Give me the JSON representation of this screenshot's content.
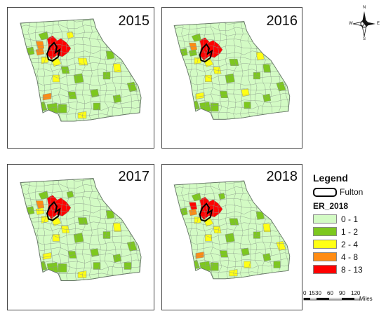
{
  "panels": [
    {
      "year": "2015",
      "colored": [
        [
          "a1",
          "red"
        ],
        [
          "a2",
          "red"
        ],
        [
          "a3",
          "orange"
        ],
        [
          "a4",
          "yellow"
        ],
        [
          "a5",
          "orange"
        ],
        [
          "a6",
          "green"
        ],
        [
          "a7",
          "green"
        ],
        [
          "a8",
          "yellow"
        ],
        [
          "a9",
          "yellow"
        ],
        [
          "b1",
          "green"
        ],
        [
          "b2",
          "yellow"
        ],
        [
          "b3",
          "yellow"
        ],
        [
          "b4",
          "green"
        ],
        [
          "c1",
          "yellow"
        ],
        [
          "c2",
          "green"
        ],
        [
          "c3",
          "green"
        ],
        [
          "c4",
          "green"
        ],
        [
          "c5",
          "green"
        ],
        [
          "d1",
          "orange"
        ],
        [
          "d2",
          "green"
        ],
        [
          "d3",
          "green"
        ],
        [
          "d4",
          "green"
        ],
        [
          "d5",
          "green"
        ],
        [
          "d6",
          "green"
        ],
        [
          "d7",
          "yellow"
        ],
        [
          "e1",
          "green"
        ],
        [
          "e2",
          "green"
        ]
      ]
    },
    {
      "year": "2016",
      "colored": [
        [
          "a1",
          "red"
        ],
        [
          "a2",
          "red"
        ],
        [
          "a3",
          "orange"
        ],
        [
          "a4",
          "yellow"
        ],
        [
          "a5",
          "green"
        ],
        [
          "a6",
          "green"
        ],
        [
          "a7",
          "green"
        ],
        [
          "a8",
          "yellow"
        ],
        [
          "b1",
          "yellow"
        ],
        [
          "b2",
          "green"
        ],
        [
          "b3",
          "green"
        ],
        [
          "b4",
          "yellow"
        ],
        [
          "c1",
          "yellow"
        ],
        [
          "c2",
          "green"
        ],
        [
          "c3",
          "green"
        ],
        [
          "c4",
          "green"
        ],
        [
          "c5",
          "yellow"
        ],
        [
          "d1",
          "yellow"
        ],
        [
          "d2",
          "green"
        ],
        [
          "d3",
          "green"
        ],
        [
          "d4",
          "green"
        ],
        [
          "d5",
          "yellow"
        ],
        [
          "d6",
          "green"
        ],
        [
          "e1",
          "green"
        ],
        [
          "e2",
          "green"
        ]
      ]
    },
    {
      "year": "2017",
      "colored": [
        [
          "a1",
          "red"
        ],
        [
          "a2",
          "red"
        ],
        [
          "a3",
          "orange"
        ],
        [
          "a4",
          "yellow"
        ],
        [
          "a5",
          "yellow"
        ],
        [
          "a6",
          "green"
        ],
        [
          "a7",
          "green"
        ],
        [
          "a8",
          "yellow"
        ],
        [
          "a9",
          "green"
        ],
        [
          "b1",
          "green"
        ],
        [
          "b2",
          "yellow"
        ],
        [
          "b3",
          "green"
        ],
        [
          "b4",
          "yellow"
        ],
        [
          "c1",
          "yellow"
        ],
        [
          "c2",
          "green"
        ],
        [
          "c3",
          "green"
        ],
        [
          "c4",
          "green"
        ],
        [
          "c5",
          "yellow"
        ],
        [
          "d1",
          "yellow"
        ],
        [
          "d2",
          "green"
        ],
        [
          "d3",
          "green"
        ],
        [
          "d4",
          "green"
        ],
        [
          "d5",
          "green"
        ],
        [
          "d6",
          "green"
        ],
        [
          "d7",
          "yellow"
        ],
        [
          "e1",
          "green"
        ],
        [
          "e2",
          "green"
        ],
        [
          "e3",
          "green"
        ]
      ]
    },
    {
      "year": "2018",
      "colored": [
        [
          "a1",
          "red"
        ],
        [
          "a2",
          "red"
        ],
        [
          "a3",
          "red"
        ],
        [
          "a4",
          "yellow"
        ],
        [
          "a5",
          "orange"
        ],
        [
          "a6",
          "green"
        ],
        [
          "a7",
          "green"
        ],
        [
          "a8",
          "yellow"
        ],
        [
          "a9",
          "green"
        ],
        [
          "b1",
          "green"
        ],
        [
          "b2",
          "yellow"
        ],
        [
          "b3",
          "green"
        ],
        [
          "b4",
          "yellow"
        ],
        [
          "c1",
          "yellow"
        ],
        [
          "c2",
          "green"
        ],
        [
          "c3",
          "green"
        ],
        [
          "c4",
          "yellow"
        ],
        [
          "c5",
          "green"
        ],
        [
          "d1",
          "orange"
        ],
        [
          "d2",
          "green"
        ],
        [
          "d3",
          "green"
        ],
        [
          "d4",
          "green"
        ],
        [
          "d5",
          "green"
        ],
        [
          "d6",
          "green"
        ],
        [
          "d7",
          "yellow"
        ],
        [
          "e1",
          "green"
        ],
        [
          "e2",
          "yellow"
        ],
        [
          "e3",
          "green"
        ]
      ]
    }
  ],
  "legend": {
    "title": "Legend",
    "fulton_label": "Fulton",
    "variable": "ER_2018",
    "classes": [
      {
        "label": "0 - 1",
        "color": "#d3fbc4"
      },
      {
        "label": "1 - 2",
        "color": "#7dc81e"
      },
      {
        "label": "2 - 4",
        "color": "#ffff14"
      },
      {
        "label": "4 - 8",
        "color": "#ff8c14"
      },
      {
        "label": "8 - 13",
        "color": "#ff0000"
      }
    ]
  },
  "scale_bar": {
    "ticks": [
      "0",
      "15",
      "30",
      "60",
      "90",
      "120"
    ],
    "units": "Miles"
  },
  "north_arrow": {
    "n": "N",
    "s": "S",
    "e": "E",
    "w": "W"
  },
  "colors": {
    "base": "#d3fbc4",
    "green": "#7dc81e",
    "yellow": "#ffff14",
    "orange": "#ff8c14",
    "red": "#ff0000",
    "border": "#8a9a8a"
  }
}
